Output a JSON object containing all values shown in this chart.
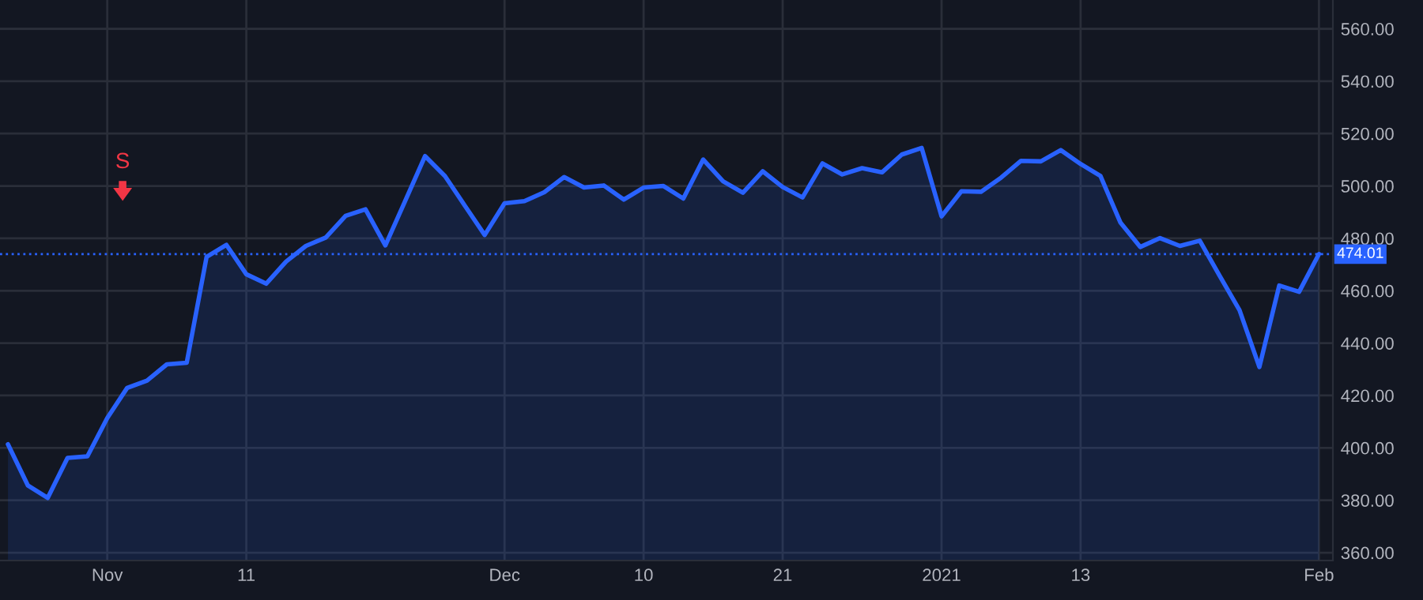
{
  "chart_data": {
    "type": "area",
    "categories": [
      null,
      null,
      null,
      null,
      null,
      "Nov",
      null,
      null,
      null,
      null,
      null,
      null,
      "11",
      null,
      null,
      null,
      null,
      null,
      null,
      null,
      null,
      null,
      null,
      null,
      null,
      "Dec",
      null,
      null,
      null,
      null,
      null,
      null,
      "10",
      null,
      null,
      null,
      null,
      null,
      null,
      "21",
      null,
      null,
      null,
      null,
      null,
      null,
      null,
      "2021",
      null,
      null,
      null,
      null,
      null,
      null,
      "13",
      null,
      null,
      null,
      null,
      null,
      null,
      null,
      null,
      null,
      null,
      null,
      "Feb"
    ],
    "series": [
      {
        "color": "#2962ff",
        "values": [
          401.4,
          385.7,
          380.9,
          396.2,
          396.8,
          411.4,
          422.9,
          425.7,
          431.9,
          432.5,
          472.9,
          477.5,
          466.3,
          462.7,
          471.1,
          477.1,
          480.3,
          488.6,
          491.1,
          477.3,
          494.3,
          511.4,
          503.8,
          492.5,
          481.3,
          493.4,
          494.2,
          497.6,
          503.4,
          499.4,
          500.2,
          494.8,
          499.4,
          500.0,
          495.2,
          510.1,
          501.8,
          497.4,
          505.6,
          499.6,
          495.6,
          508.6,
          504.4,
          506.8,
          505.2,
          512.0,
          514.5,
          488.4,
          498.0,
          497.8,
          503.2,
          509.6,
          509.4,
          513.7,
          508.4,
          503.8,
          486.1,
          476.7,
          480.1,
          477.1,
          479.1,
          465.7,
          452.6,
          430.9,
          462.0,
          459.6,
          474.0
        ]
      }
    ],
    "ylim": [
      357,
      571
    ],
    "yticks": [
      {
        "value": 360,
        "label": "360.00"
      },
      {
        "value": 380,
        "label": "380.00"
      },
      {
        "value": 400,
        "label": "400.00"
      },
      {
        "value": 420,
        "label": "420.00"
      },
      {
        "value": 440,
        "label": "440.00"
      },
      {
        "value": 460,
        "label": "460.00"
      },
      {
        "value": 480,
        "label": "480.00"
      },
      {
        "value": 500,
        "label": "500.00"
      },
      {
        "value": 520,
        "label": "520.00"
      },
      {
        "value": 540,
        "label": "540.00"
      },
      {
        "value": 560,
        "label": "560.00"
      }
    ],
    "grid": true,
    "ref_lines": [
      {
        "axis": "y",
        "value": 474.01,
        "label": "474.01",
        "color": "#2962ff",
        "line_style": "dotted"
      }
    ],
    "annotations": [
      "S"
    ]
  }
}
